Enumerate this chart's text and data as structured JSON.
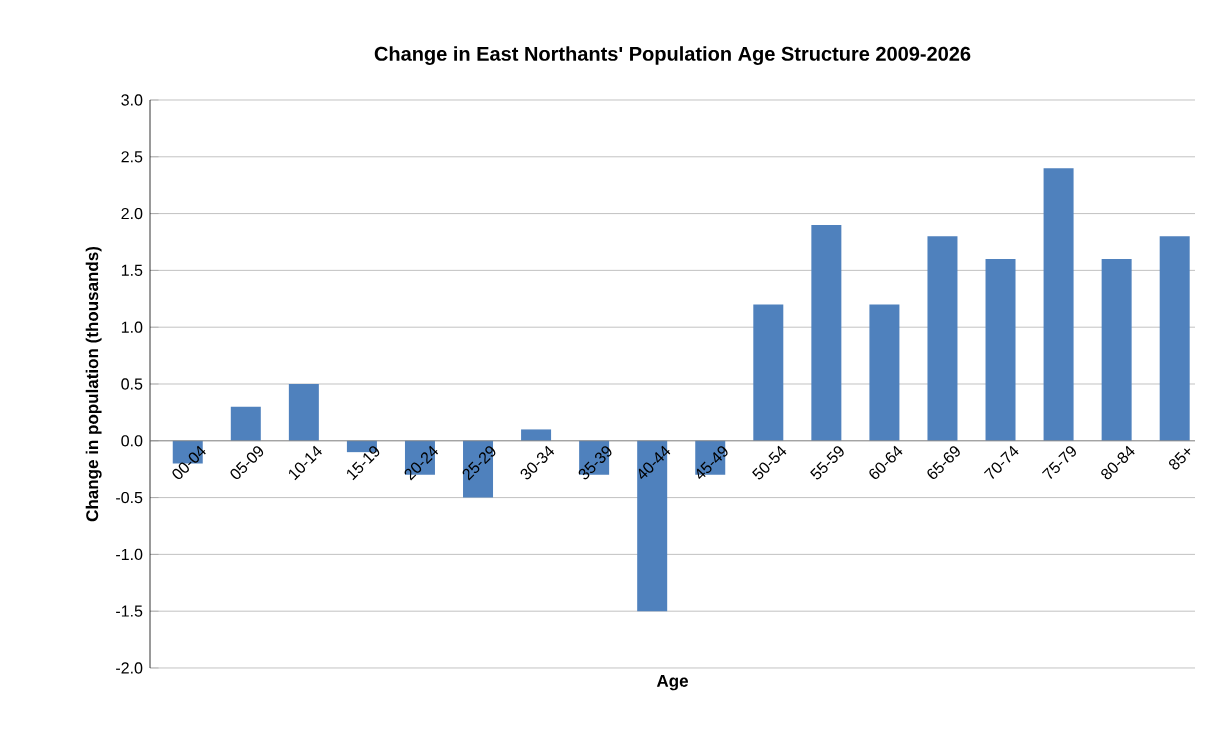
{
  "chart_data": {
    "type": "bar",
    "title": "Change in East Northants' Population Age Structure 2009-2026",
    "xlabel": "Age",
    "ylabel": "Change in population (thousands)",
    "categories": [
      "00-04",
      "05-09",
      "10-14",
      "15-19",
      "20-24",
      "25-29",
      "30-34",
      "35-39",
      "40-44",
      "45-49",
      "50-54",
      "55-59",
      "60-64",
      "65-69",
      "70-74",
      "75-79",
      "80-84",
      "85+"
    ],
    "values": [
      -0.2,
      0.3,
      0.5,
      -0.1,
      -0.3,
      -0.5,
      0.1,
      -0.3,
      -1.5,
      -0.3,
      1.2,
      1.9,
      1.2,
      1.8,
      1.6,
      2.4,
      1.6,
      1.8
    ],
    "color": "#4f81bd",
    "ylim": [
      -2.0,
      3.0
    ],
    "yticks": [
      {
        "value": -2,
        "label": "-2.0"
      },
      {
        "value": -1.5,
        "label": "-1.5"
      },
      {
        "value": -1,
        "label": "-1.0"
      },
      {
        "value": -0.5,
        "label": "-0.5"
      },
      {
        "value": 0,
        "label": "0.0"
      },
      {
        "value": 0.5,
        "label": "0.5"
      },
      {
        "value": 1,
        "label": "1.0"
      },
      {
        "value": 1.5,
        "label": "1.5"
      },
      {
        "value": 2,
        "label": "2.0"
      },
      {
        "value": 2.5,
        "label": "2.5"
      },
      {
        "value": 3,
        "label": "3.0"
      }
    ],
    "grid": "y"
  }
}
